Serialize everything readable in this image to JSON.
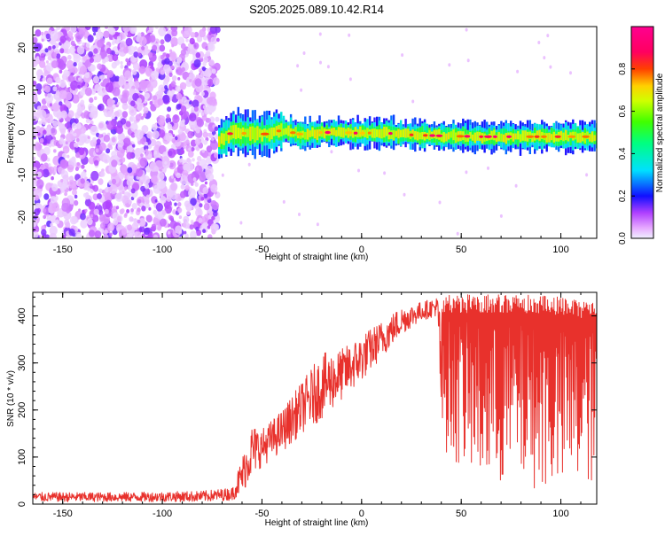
{
  "page_title": "S205.2025.089.10.42.R14",
  "colors": {
    "snr_line": "#e8312c",
    "scatter": "#8a3cf0",
    "frame": "#000000"
  },
  "chart_data": [
    {
      "type": "heatmap",
      "title": "S205.2025.089.10.42.R14",
      "xlabel": "Height of straight line (km)",
      "ylabel": "Frequency (Hz)",
      "xlim": [
        -165,
        118
      ],
      "ylim": [
        -25,
        25
      ],
      "xticks": [
        -150,
        -100,
        -50,
        0,
        50,
        100
      ],
      "yticks": [
        -20,
        -10,
        0,
        10,
        20
      ],
      "colorbar": {
        "label": "Normalized spectral amplitude",
        "range": [
          0,
          1
        ],
        "ticks": [
          0.0,
          0.2,
          0.4,
          0.6,
          0.8
        ],
        "tick_labels": [
          "0.0",
          "0.2",
          "0.4",
          "0.6",
          "0.8"
        ],
        "colormap": "rainbow (magenta-blue-cyan-green-yellow-red-magenta)"
      },
      "noise_region_x": [
        -165,
        -72
      ],
      "signal_band": {
        "x_start": -72,
        "x_end": 118,
        "center_frequency": [
          [
            -72,
            -2
          ],
          [
            -65,
            0
          ],
          [
            -50,
            -0.5
          ],
          [
            -40,
            0.5
          ],
          [
            -30,
            -0.5
          ],
          [
            -20,
            0
          ],
          [
            -10,
            0
          ],
          [
            0,
            -0.2
          ],
          [
            10,
            0
          ],
          [
            20,
            -0.5
          ],
          [
            40,
            -0.8
          ],
          [
            60,
            -1
          ],
          [
            80,
            -1
          ],
          [
            100,
            -1
          ],
          [
            118,
            -1
          ]
        ],
        "peak_amplitude": 0.95
      }
    },
    {
      "type": "line",
      "xlabel": "Height of straight line (km)",
      "ylabel": "SNR (10 * v/v)",
      "xlim": [
        -165,
        118
      ],
      "ylim": [
        0,
        450
      ],
      "xticks": [
        -150,
        -100,
        -50,
        0,
        50,
        100
      ],
      "yticks": [
        0,
        100,
        200,
        300,
        400
      ],
      "envelope": [
        {
          "x": -165,
          "low": 5,
          "high": 25
        },
        {
          "x": -120,
          "low": 5,
          "high": 25
        },
        {
          "x": -80,
          "low": 5,
          "high": 28
        },
        {
          "x": -65,
          "low": 8,
          "high": 35
        },
        {
          "x": -60,
          "low": 20,
          "high": 100
        },
        {
          "x": -55,
          "low": 60,
          "high": 170
        },
        {
          "x": -50,
          "low": 80,
          "high": 160
        },
        {
          "x": -40,
          "low": 110,
          "high": 200
        },
        {
          "x": -30,
          "low": 150,
          "high": 260
        },
        {
          "x": -20,
          "low": 180,
          "high": 320
        },
        {
          "x": -10,
          "low": 220,
          "high": 330
        },
        {
          "x": 0,
          "low": 260,
          "high": 360
        },
        {
          "x": 10,
          "low": 310,
          "high": 390
        },
        {
          "x": 20,
          "low": 360,
          "high": 420
        },
        {
          "x": 30,
          "low": 390,
          "high": 430
        },
        {
          "x": 38,
          "low": 400,
          "high": 440
        },
        {
          "x": 40,
          "low": 120,
          "high": 445
        },
        {
          "x": 60,
          "low": 30,
          "high": 445
        },
        {
          "x": 80,
          "low": 40,
          "high": 445
        },
        {
          "x": 100,
          "low": 20,
          "high": 440
        },
        {
          "x": 118,
          "low": 40,
          "high": 430
        }
      ]
    }
  ]
}
